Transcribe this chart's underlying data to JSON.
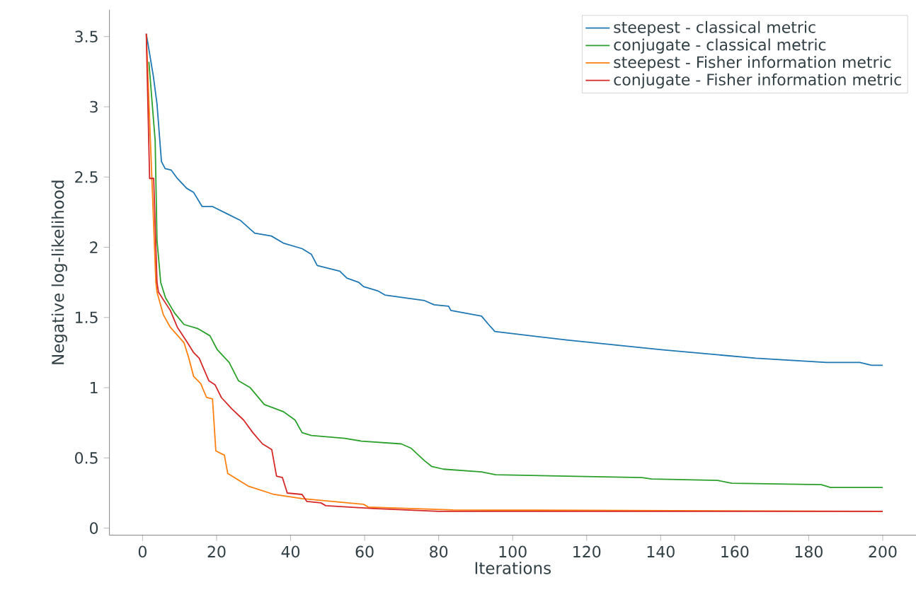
{
  "chart_data": {
    "type": "line",
    "xlabel": "Iterations",
    "ylabel": "Negative log-likelihood",
    "xlim": [
      -8.95,
      209
    ],
    "ylim": [
      -0.05,
      3.69
    ],
    "xticks": [
      0,
      20,
      40,
      60,
      80,
      100,
      120,
      140,
      160,
      180,
      200
    ],
    "yticks": [
      0,
      0.5,
      1,
      1.5,
      2,
      2.5,
      3,
      3.5
    ],
    "grid": false,
    "legend": "top right",
    "marker": "none",
    "line_style": "solid",
    "series": [
      {
        "name": "steepest - classical metric",
        "color": "#1f77b4",
        "x": [
          1,
          2.9,
          3.9,
          5.1,
          6.1,
          7.7,
          9.4,
          11.9,
          13.8,
          16.1,
          18.9,
          22.7,
          26.5,
          30.3,
          34.8,
          38,
          43.1,
          45.6,
          47.2,
          53.3,
          55.2,
          58.4,
          59.7,
          63.5,
          65.5,
          76.2,
          78.8,
          82.7,
          83.3,
          91.6,
          93.5,
          95.2,
          114.6,
          140.2,
          165.7,
          184.8,
          193.8,
          197,
          200
        ],
        "values": [
          3.52,
          3.22,
          3.02,
          2.61,
          2.56,
          2.55,
          2.49,
          2.42,
          2.39,
          2.29,
          2.29,
          2.24,
          2.19,
          2.1,
          2.08,
          2.03,
          1.99,
          1.95,
          1.87,
          1.83,
          1.78,
          1.75,
          1.72,
          1.69,
          1.66,
          1.62,
          1.59,
          1.58,
          1.55,
          1.51,
          1.45,
          1.4,
          1.34,
          1.27,
          1.21,
          1.18,
          1.18,
          1.16,
          1.16
        ]
      },
      {
        "name": "conjugate - classical metric",
        "color": "#2ca02c",
        "x": [
          1.7,
          3.4,
          3.9,
          4.9,
          6.2,
          8.7,
          11.2,
          15,
          18.2,
          20.2,
          23.4,
          25.9,
          29.1,
          32.9,
          38,
          41.2,
          43.1,
          45.6,
          54.6,
          59.1,
          69.9,
          72.5,
          76.2,
          78.1,
          81.3,
          91.6,
          95.4,
          114.6,
          134.9,
          137.6,
          155.4,
          159.2,
          183.4,
          185.9,
          200
        ],
        "values": [
          3.32,
          2.76,
          2.05,
          1.75,
          1.64,
          1.53,
          1.45,
          1.42,
          1.37,
          1.27,
          1.18,
          1.05,
          1.0,
          0.88,
          0.83,
          0.77,
          0.68,
          0.66,
          0.64,
          0.62,
          0.6,
          0.57,
          0.48,
          0.44,
          0.42,
          0.4,
          0.38,
          0.37,
          0.36,
          0.35,
          0.34,
          0.32,
          0.31,
          0.29,
          0.29
        ]
      },
      {
        "name": "steepest - Fisher information metric",
        "color": "#ff7f0e",
        "x": [
          1,
          3.6,
          3.9,
          5.6,
          7.5,
          10.2,
          11.2,
          12.5,
          13.8,
          15.7,
          17.3,
          18.9,
          19.8,
          22.1,
          23,
          28.5,
          35.5,
          43.1,
          59.7,
          61,
          83.9,
          200
        ],
        "values": [
          3.52,
          1.75,
          1.68,
          1.52,
          1.43,
          1.35,
          1.32,
          1.21,
          1.08,
          1.03,
          0.93,
          0.92,
          0.55,
          0.52,
          0.39,
          0.3,
          0.24,
          0.21,
          0.17,
          0.15,
          0.13,
          0.12
        ]
      },
      {
        "name": "conjugate - Fisher information metric",
        "color": "#d62728",
        "x": [
          1,
          1.9,
          3,
          3.9,
          4.3,
          7.5,
          9.4,
          11.9,
          13.8,
          15.3,
          17.9,
          19.6,
          21.3,
          24.1,
          27.3,
          29.8,
          32.4,
          34.9,
          36.2,
          37.8,
          39.1,
          43.1,
          44.4,
          48.2,
          49.5,
          62.3,
          80,
          200
        ],
        "values": [
          3.52,
          2.49,
          2.49,
          1.75,
          1.68,
          1.55,
          1.43,
          1.33,
          1.25,
          1.21,
          1.05,
          1.02,
          0.93,
          0.85,
          0.77,
          0.68,
          0.6,
          0.56,
          0.37,
          0.36,
          0.25,
          0.24,
          0.19,
          0.18,
          0.16,
          0.14,
          0.12,
          0.12
        ]
      }
    ]
  }
}
